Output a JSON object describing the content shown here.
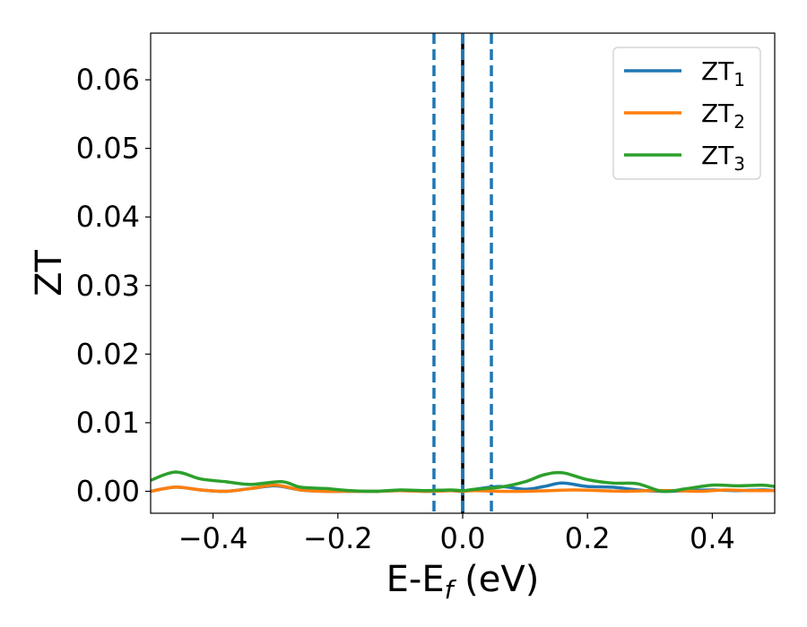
{
  "chart_data": {
    "type": "line",
    "xlabel": "E-E",
    "xlabel_sub": "f",
    "xlabel_unit": " (eV)",
    "ylabel": "ZT",
    "xlim": [
      -0.5,
      0.5
    ],
    "ylim": [
      -0.0032,
      0.0668
    ],
    "xticks": [
      -0.4,
      -0.2,
      0.0,
      0.2,
      0.4
    ],
    "xtick_labels": [
      "−0.4",
      "−0.2",
      "0.0",
      "0.2",
      "0.4"
    ],
    "yticks": [
      0.0,
      0.01,
      0.02,
      0.03,
      0.04,
      0.05,
      0.06
    ],
    "ytick_labels": [
      "0.00",
      "0.01",
      "0.02",
      "0.03",
      "0.04",
      "0.05",
      "0.06"
    ],
    "grid": false,
    "legend_position": "top-right",
    "series": [
      {
        "name": "ZT",
        "name_sub": "1",
        "color": "#1f77b4",
        "x": [
          -0.5,
          -0.46,
          -0.42,
          -0.38,
          -0.34,
          -0.3,
          -0.26,
          -0.22,
          -0.18,
          -0.14,
          -0.1,
          -0.06,
          -0.02,
          0.0,
          0.02,
          0.06,
          0.1,
          0.13,
          0.16,
          0.2,
          0.24,
          0.28,
          0.32,
          0.36,
          0.4,
          0.44,
          0.48,
          0.5
        ],
        "y": [
          0.0,
          0.0006,
          0.0002,
          0.0,
          0.0004,
          0.0008,
          0.0002,
          0.0,
          0.0,
          0.0,
          0.0001,
          0.0,
          0.0001,
          0.0,
          0.0003,
          0.0007,
          0.0003,
          0.0007,
          0.0012,
          0.0007,
          0.0006,
          0.0002,
          0.0,
          0.0001,
          0.0002,
          0.0001,
          0.0002,
          0.0001
        ]
      },
      {
        "name": "ZT",
        "name_sub": "2",
        "color": "#ff7f0e",
        "x": [
          -0.5,
          -0.46,
          -0.42,
          -0.38,
          -0.34,
          -0.3,
          -0.26,
          -0.22,
          -0.18,
          -0.14,
          -0.1,
          -0.06,
          -0.02,
          0.0,
          0.02,
          0.06,
          0.1,
          0.14,
          0.18,
          0.22,
          0.26,
          0.3,
          0.34,
          0.38,
          0.42,
          0.46,
          0.5
        ],
        "y": [
          0.0,
          0.0006,
          0.0002,
          0.0,
          0.0004,
          0.0009,
          0.0002,
          0.0,
          0.0,
          0.0,
          0.0001,
          0.0,
          0.0001,
          0.0,
          0.0001,
          0.0,
          0.0,
          0.0001,
          0.0002,
          0.0001,
          0.0,
          0.0001,
          0.0001,
          0.0,
          0.0002,
          0.0001,
          0.0001
        ]
      },
      {
        "name": "ZT",
        "name_sub": "3",
        "color": "#2ca02c",
        "x": [
          -0.5,
          -0.46,
          -0.42,
          -0.38,
          -0.34,
          -0.29,
          -0.26,
          -0.22,
          -0.18,
          -0.14,
          -0.1,
          -0.06,
          -0.02,
          0.0,
          0.02,
          0.06,
          0.1,
          0.13,
          0.16,
          0.2,
          0.24,
          0.28,
          0.32,
          0.36,
          0.4,
          0.44,
          0.48,
          0.5
        ],
        "y": [
          0.0016,
          0.0028,
          0.0018,
          0.0014,
          0.001,
          0.0014,
          0.0006,
          0.0004,
          0.0001,
          0.0,
          0.0002,
          0.0001,
          0.0002,
          0.0001,
          0.0003,
          0.0006,
          0.0014,
          0.0024,
          0.0027,
          0.0017,
          0.0012,
          0.0011,
          0.0,
          0.0004,
          0.0009,
          0.0008,
          0.0009,
          0.0007
        ]
      }
    ],
    "vlines": [
      {
        "x": -0.046,
        "style": "dashed",
        "color": "#1f77b4"
      },
      {
        "x": 0.0,
        "style": "solid",
        "color": "#000000"
      },
      {
        "x": 0.0,
        "style": "dashed",
        "color": "#1f77b4"
      },
      {
        "x": 0.046,
        "style": "dashed",
        "color": "#1f77b4"
      }
    ]
  }
}
